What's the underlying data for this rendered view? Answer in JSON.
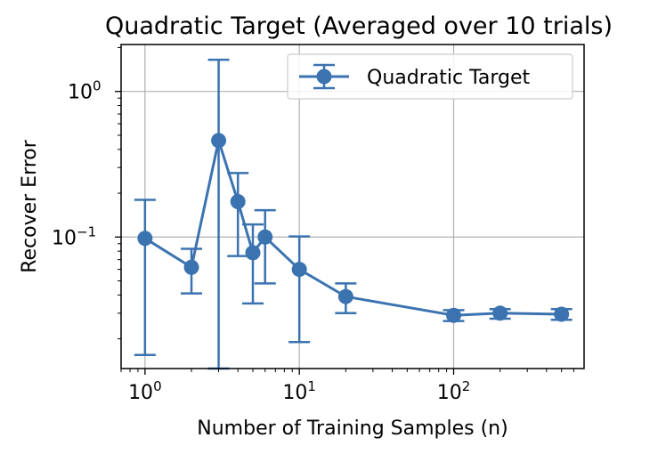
{
  "chart_data": {
    "type": "line",
    "title": "Quadratic Target (Averaged over 10 trials)",
    "xlabel": "Number of Training Samples (n)",
    "ylabel": "Recover Error",
    "x_scale": "log",
    "y_scale": "log",
    "xlim": [
      0.7,
      700
    ],
    "ylim": [
      0.0125,
      2.1
    ],
    "grid": true,
    "legend_position": "top-right",
    "x_ticks": [
      {
        "value": 1,
        "base": "10",
        "exp": "0"
      },
      {
        "value": 10,
        "base": "10",
        "exp": "1"
      },
      {
        "value": 100,
        "base": "10",
        "exp": "2"
      }
    ],
    "y_ticks": [
      {
        "value": 0.1,
        "base": "10",
        "exp": "−1"
      },
      {
        "value": 1,
        "base": "10",
        "exp": "0"
      }
    ],
    "series": [
      {
        "name": "Quadratic Target",
        "color": "#3b73b0",
        "marker": "circle",
        "x": [
          1,
          2,
          3,
          4,
          5,
          6,
          10,
          20,
          100,
          200,
          500
        ],
        "y": [
          0.098,
          0.062,
          0.46,
          0.175,
          0.078,
          0.1,
          0.06,
          0.039,
          0.029,
          0.03,
          0.0295
        ],
        "err_low": [
          0.0155,
          0.041,
          0.0125,
          0.074,
          0.035,
          0.048,
          0.019,
          0.03,
          0.0265,
          0.0275,
          0.027
        ],
        "err_high": [
          0.18,
          0.083,
          1.65,
          0.275,
          0.122,
          0.153,
          0.101,
          0.048,
          0.0315,
          0.032,
          0.032
        ]
      }
    ]
  }
}
